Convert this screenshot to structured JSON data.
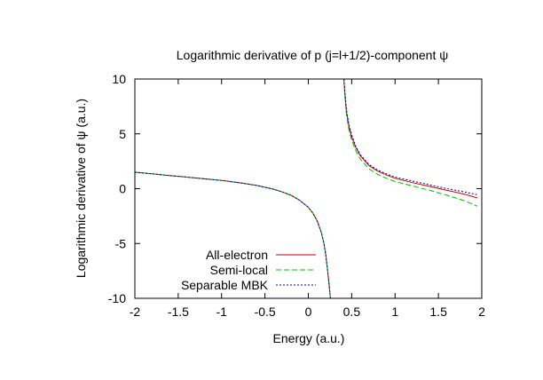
{
  "chart_data": {
    "type": "line",
    "title": "Logarithmic derivative of p (j=l+1/2)-component ψ",
    "xlabel": "Energy (a.u.)",
    "ylabel": "Logarithmic derivative of ψ (a.u.)",
    "xlim": [
      -2,
      2
    ],
    "ylim": [
      -10,
      10
    ],
    "xticks": [
      -2,
      -1.5,
      -1,
      -0.5,
      0,
      0.5,
      1,
      1.5,
      2
    ],
    "xtick_labels": [
      "-2",
      "-1.5",
      "-1",
      "-0.5",
      "0",
      "0.5",
      "1",
      "1.5",
      "2"
    ],
    "yticks": [
      -10,
      -5,
      0,
      5,
      10
    ],
    "ytick_labels": [
      "-10",
      "-5",
      "0",
      "5",
      "10"
    ],
    "grid": false,
    "legend_position": "bottom-left",
    "series": [
      {
        "name": "All-electron",
        "color": "#cc0000",
        "dash": "",
        "x": [
          -2,
          -1.8,
          -1.6,
          -1.4,
          -1.2,
          -1.0,
          -0.8,
          -0.6,
          -0.4,
          -0.3,
          -0.2,
          -0.1,
          0.0,
          0.05,
          0.1,
          0.15,
          0.18,
          0.2,
          0.22,
          0.24,
          0.25,
          0.255,
          null,
          0.41,
          0.42,
          0.44,
          0.47,
          0.5,
          0.55,
          0.6,
          0.7,
          0.8,
          0.9,
          1.0,
          1.2,
          1.4,
          1.6,
          1.8,
          1.95
        ],
        "y": [
          1.5,
          1.35,
          1.2,
          1.05,
          0.9,
          0.75,
          0.55,
          0.3,
          -0.05,
          -0.3,
          -0.6,
          -1.05,
          -1.7,
          -2.2,
          -2.9,
          -4.0,
          -5.0,
          -6.0,
          -7.3,
          -8.8,
          -9.6,
          -10,
          null,
          10,
          8.8,
          7.0,
          5.6,
          4.7,
          3.7,
          3.0,
          2.1,
          1.6,
          1.25,
          0.95,
          0.55,
          0.2,
          -0.15,
          -0.5,
          -0.85
        ]
      },
      {
        "name": "Semi-local",
        "color": "#00bb00",
        "dash": "6,3",
        "x": [
          -2,
          -1.8,
          -1.6,
          -1.4,
          -1.2,
          -1.0,
          -0.8,
          -0.6,
          -0.4,
          -0.3,
          -0.2,
          -0.1,
          0.0,
          0.05,
          0.1,
          0.15,
          0.18,
          0.2,
          0.22,
          0.24,
          0.25,
          0.255,
          null,
          0.41,
          0.42,
          0.44,
          0.47,
          0.5,
          0.55,
          0.6,
          0.7,
          0.8,
          0.9,
          1.0,
          1.2,
          1.4,
          1.6,
          1.8,
          1.95
        ],
        "y": [
          1.5,
          1.35,
          1.2,
          1.05,
          0.9,
          0.75,
          0.55,
          0.3,
          -0.05,
          -0.3,
          -0.6,
          -1.05,
          -1.7,
          -2.2,
          -2.9,
          -4.0,
          -5.0,
          -6.0,
          -7.3,
          -8.8,
          -9.6,
          -10,
          null,
          10,
          8.5,
          6.7,
          5.3,
          4.4,
          3.4,
          2.7,
          1.8,
          1.3,
          0.95,
          0.65,
          0.25,
          -0.15,
          -0.6,
          -1.1,
          -1.6
        ]
      },
      {
        "name": "Separable MBK",
        "color": "#0000bb",
        "dash": "2,2",
        "x": [
          -2,
          -1.8,
          -1.6,
          -1.4,
          -1.2,
          -1.0,
          -0.8,
          -0.6,
          -0.4,
          -0.3,
          -0.2,
          -0.1,
          0.0,
          0.05,
          0.1,
          0.15,
          0.18,
          0.2,
          0.22,
          0.24,
          0.25,
          0.255,
          null,
          0.41,
          0.42,
          0.44,
          0.47,
          0.5,
          0.55,
          0.6,
          0.7,
          0.8,
          0.9,
          1.0,
          1.2,
          1.4,
          1.6,
          1.8,
          1.95
        ],
        "y": [
          1.5,
          1.35,
          1.2,
          1.05,
          0.9,
          0.75,
          0.55,
          0.3,
          -0.05,
          -0.3,
          -0.6,
          -1.05,
          -1.7,
          -2.2,
          -2.9,
          -4.0,
          -5.0,
          -6.0,
          -7.3,
          -8.8,
          -9.6,
          -10,
          null,
          10,
          9.0,
          7.2,
          5.8,
          4.9,
          3.8,
          3.1,
          2.2,
          1.7,
          1.35,
          1.05,
          0.7,
          0.35,
          0.0,
          -0.3,
          -0.55
        ]
      }
    ]
  }
}
